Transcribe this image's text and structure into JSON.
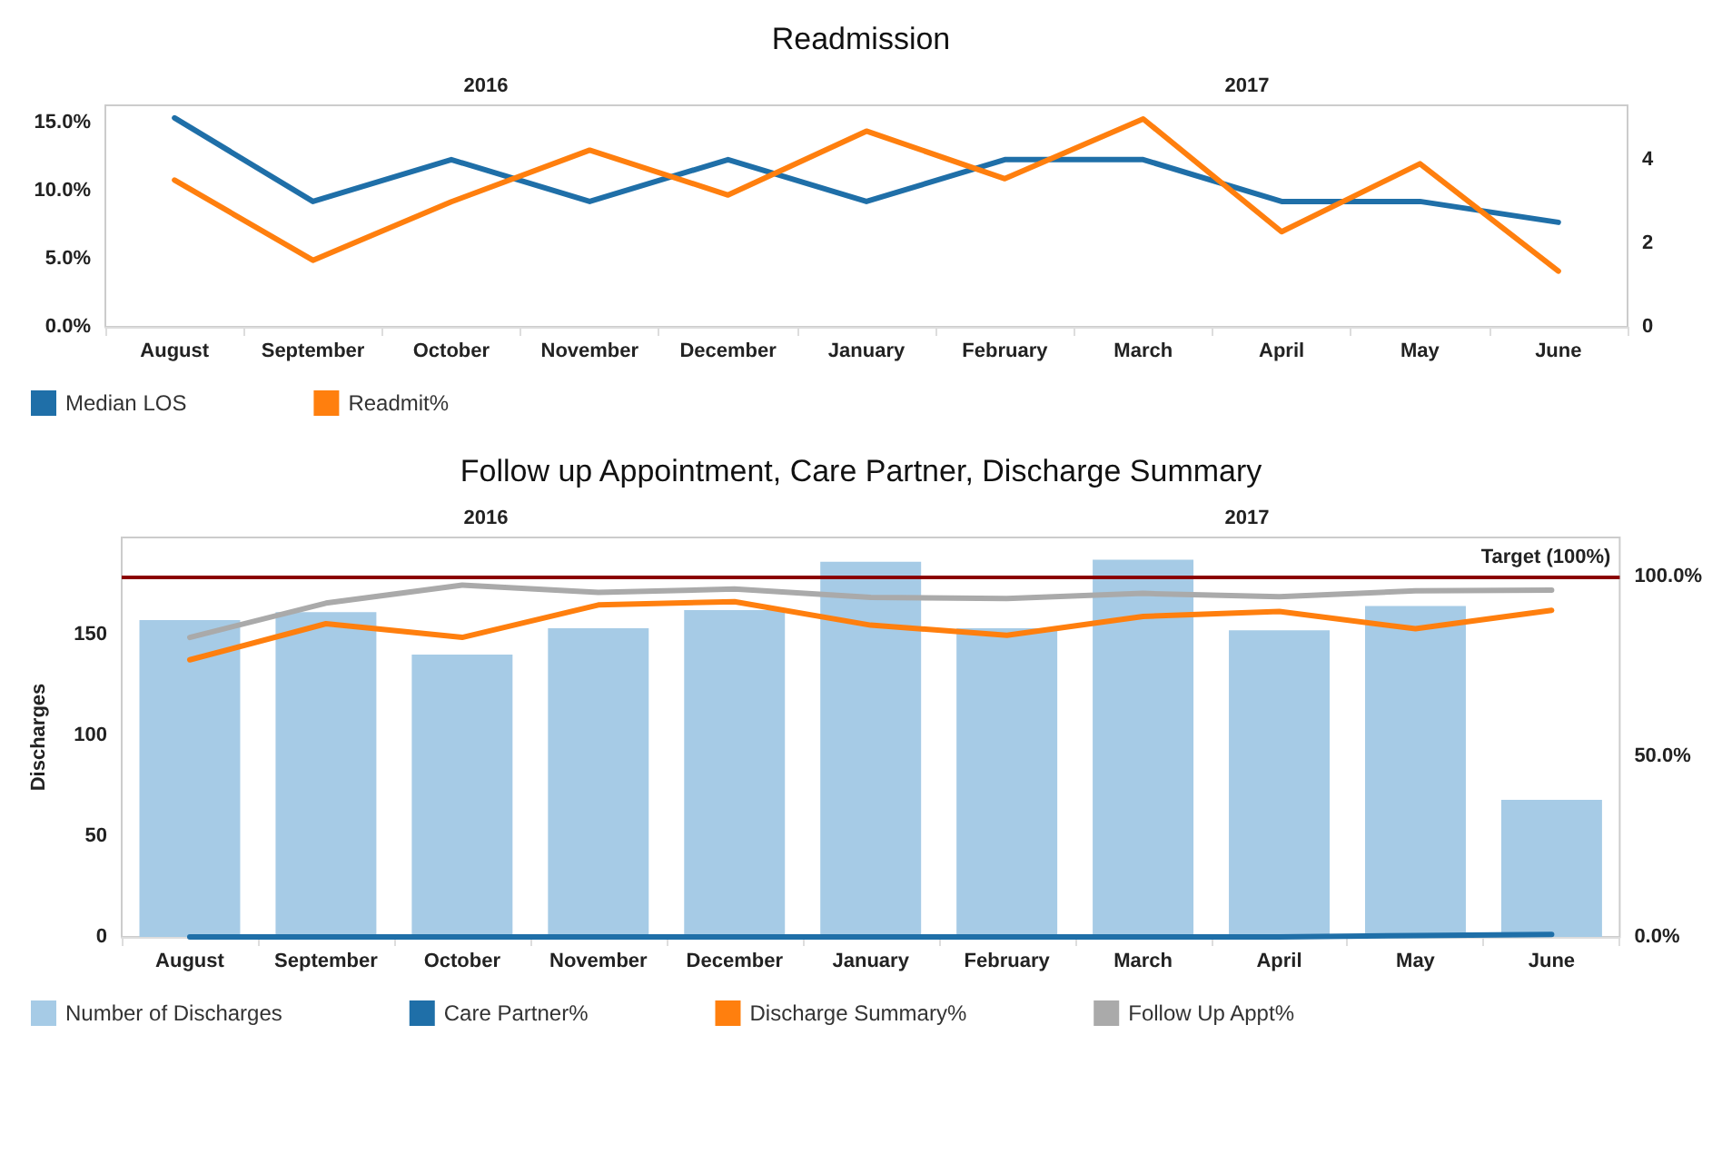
{
  "chart_data": [
    {
      "type": "line",
      "title": "Readmission",
      "categories": [
        "August",
        "September",
        "October",
        "November",
        "December",
        "January",
        "February",
        "March",
        "April",
        "May",
        "June"
      ],
      "series": [
        {
          "name": "Median LOS",
          "color": "#1f6fa8",
          "axis": "y2",
          "values": [
            5,
            3,
            4,
            3,
            4,
            3,
            4,
            4,
            3,
            3,
            2.5
          ]
        },
        {
          "name": "Readmit%",
          "color": "#ff7f0e",
          "axis": "y",
          "values": [
            10.8,
            4.9,
            9.2,
            13.0,
            9.7,
            14.4,
            10.9,
            15.3,
            7.0,
            12.0,
            4.1
          ]
        }
      ],
      "ylim": [
        0,
        16.3
      ],
      "yticks": [
        {
          "value": 0,
          "label": "0.0%"
        },
        {
          "value": 5,
          "label": "5.0%"
        },
        {
          "value": 10,
          "label": "10.0%"
        },
        {
          "value": 15,
          "label": "15.0%"
        }
      ],
      "y2lim": [
        0,
        5.3
      ],
      "y2ticks": [
        0,
        2,
        4
      ],
      "annotations": [
        "2016",
        "2017"
      ],
      "grid": false,
      "legend": "bottom left",
      "marker": "none",
      "line_style": "solid"
    },
    {
      "type": "bar",
      "title": "Follow up Appointment, Care Partner, Discharge Summary",
      "ylabel": "Discharges",
      "categories": [
        "August",
        "September",
        "October",
        "November",
        "December",
        "January",
        "February",
        "March",
        "April",
        "May",
        "June"
      ],
      "series": [
        {
          "name": "Number of Discharges",
          "color": "#a6cbe6",
          "axis": "y",
          "values": [
            157,
            161,
            140,
            153,
            162,
            186,
            153,
            187,
            152,
            164,
            68
          ]
        },
        {
          "name": "Care Partner%",
          "type": "line",
          "color": "#1f6fa8",
          "axis": "y2",
          "values": [
            0,
            0,
            0,
            0,
            0,
            0,
            0,
            0,
            0,
            0.4,
            0.7
          ]
        },
        {
          "name": "Discharge Summary%",
          "type": "line",
          "color": "#ff7f0e",
          "axis": "y2",
          "values": [
            76.8,
            86.8,
            83,
            92,
            92.9,
            86.4,
            83.6,
            88.8,
            90.2,
            85.4,
            90.5
          ]
        },
        {
          "name": "Follow Up Appt%",
          "type": "line",
          "color": "#aaaaaa",
          "axis": "y2",
          "values": [
            83,
            92.5,
            97.5,
            95.5,
            96.4,
            94.1,
            93.8,
            95.2,
            94.3,
            95.9,
            96.1
          ]
        }
      ],
      "ylim": [
        0,
        198
      ],
      "yticks": [
        0,
        50,
        100,
        150
      ],
      "y2lim": [
        0,
        110.7
      ],
      "y2ticks": [
        {
          "value": 0,
          "label": "0.0%"
        },
        {
          "value": 50,
          "label": "50.0%"
        },
        {
          "value": 100,
          "label": "100.0%"
        }
      ],
      "ref_lines": [
        {
          "axis": "y2",
          "value": 100,
          "label": "Target (100%)",
          "color": "#8b0000"
        }
      ],
      "annotations": [
        "2016",
        "2017"
      ],
      "grid": false,
      "legend": "bottom left",
      "marker": "none",
      "line_style": "solid"
    }
  ]
}
